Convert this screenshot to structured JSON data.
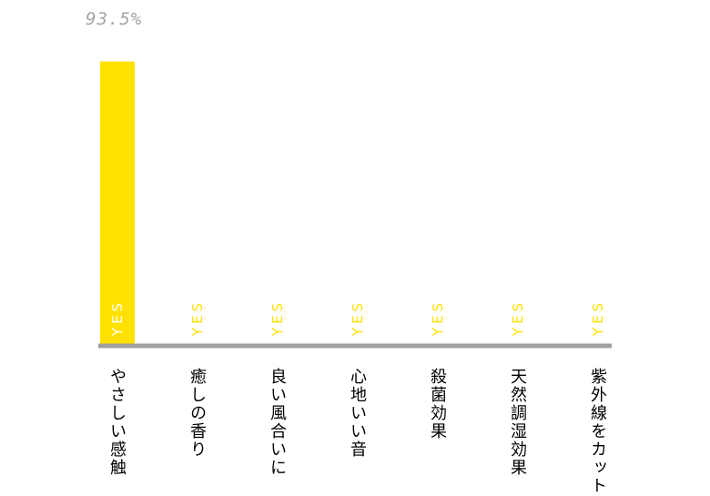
{
  "chart_data": {
    "type": "bar",
    "categories": [
      "やさしい感触",
      "癒しの香り",
      "良い風合いに",
      "心地いい音",
      "殺菌効果",
      "天然調湿効果",
      "紫外線をカット"
    ],
    "values": [
      93.5,
      0,
      0,
      0,
      0,
      0,
      0
    ],
    "value_labels": [
      "93.5%",
      "",
      "",
      "",
      "",
      "",
      ""
    ],
    "bar_labels": [
      "YES",
      "YES",
      "YES",
      "YES",
      "YES",
      "YES",
      "YES"
    ],
    "ylim": [
      0,
      100
    ],
    "title": "",
    "xlabel": "",
    "ylabel": "",
    "grid": false,
    "colors": {
      "bar": "#ffe100",
      "yes_on_bar": "#ffffff",
      "yes_off_bar": "#ffe100",
      "axis": "#a0a0a0",
      "percent_text": "#a3a3a3"
    }
  }
}
